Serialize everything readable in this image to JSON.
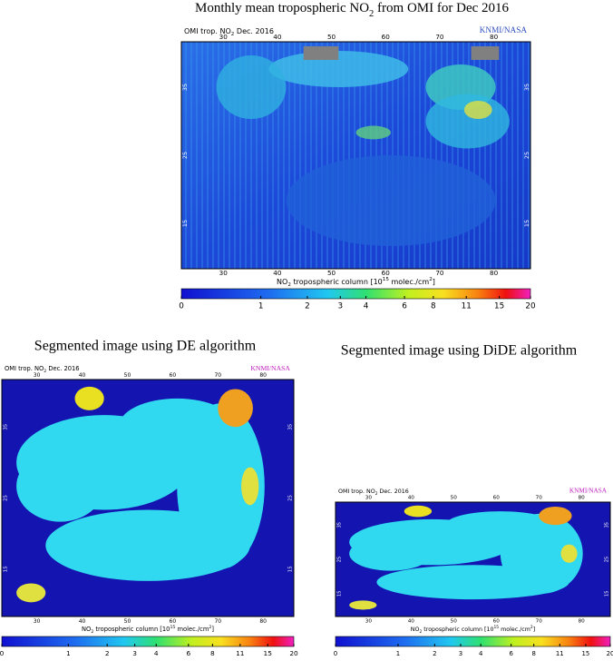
{
  "title_parts": [
    "Monthly mean tropospheric NO",
    "2",
    " from OMI for Dec 2016"
  ],
  "header_parts": [
    "OMI trop. NO",
    "2",
    " Dec. 2016"
  ],
  "credit": "KNMI/NASA",
  "lon_ticks": [
    "30",
    "40",
    "50",
    "60",
    "70",
    "80"
  ],
  "lat_ticks": [
    "35",
    "25",
    "15"
  ],
  "colorbar_label_parts": [
    "NO",
    "2",
    " tropospheric column [10",
    "15",
    " molec./cm",
    "2",
    "]"
  ],
  "colorbar_ticks": [
    0,
    1,
    2,
    3,
    4,
    6,
    8,
    11,
    15,
    20
  ],
  "captions": [
    "Segmented image using DE algorithm",
    "Segmented image using DiDE algorithm"
  ]
}
